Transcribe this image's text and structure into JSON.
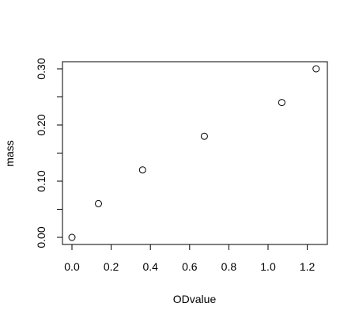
{
  "chart_data": {
    "type": "scatter",
    "xlabel": "ODvalue",
    "ylabel": "mass",
    "xlim": [
      0,
      1.25
    ],
    "ylim": [
      0,
      0.3
    ],
    "x_ticks": [
      "0.0",
      "0.2",
      "0.4",
      "0.6",
      "0.8",
      "1.0",
      "1.2"
    ],
    "y_ticks": [
      "0.00",
      "0.10",
      "0.20",
      "0.30"
    ],
    "y_minor_ticks": [
      "0.05",
      "0.15",
      "0.25"
    ],
    "grid": false,
    "marker": "open-circle",
    "series": [
      {
        "x": [
          0.0,
          0.135,
          0.36,
          0.675,
          1.07,
          1.245
        ],
        "y": [
          0.0,
          0.06,
          0.12,
          0.18,
          0.24,
          0.3
        ]
      }
    ]
  }
}
